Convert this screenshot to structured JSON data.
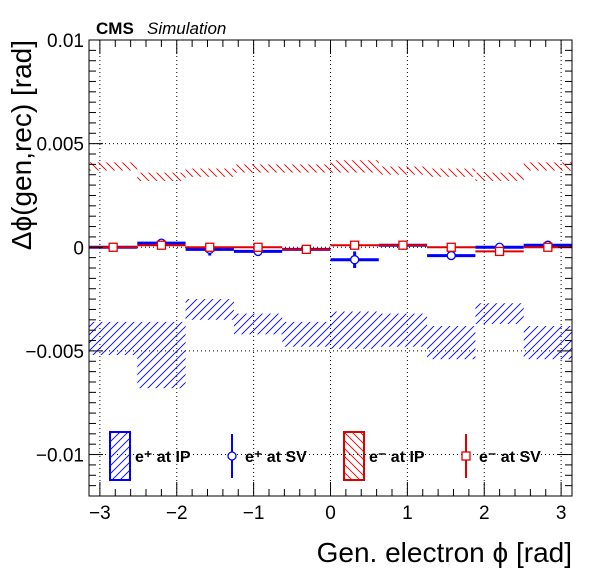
{
  "header": {
    "experiment": "CMS",
    "label": "Simulation"
  },
  "chart_data": {
    "type": "scatter",
    "xlabel": "Gen. electron ϕ [rad]",
    "ylabel": "Δϕ(gen,rec) [rad]",
    "xlim": [
      -3.1416,
      3.1416
    ],
    "ylim": [
      -0.012,
      0.01
    ],
    "grid": true,
    "x_ticks": [
      -3,
      -2,
      -1,
      0,
      1,
      2,
      3
    ],
    "y_ticks": [
      -0.01,
      -0.005,
      0,
      0.005,
      0.01
    ],
    "x_tick_labels": [
      "−3",
      "−2",
      "−1",
      "0",
      "1",
      "2",
      "3"
    ],
    "y_tick_labels": [
      "−0.01",
      "−0.005",
      "0",
      "0.005",
      "0.01"
    ],
    "bin_edges": [
      -3.1416,
      -2.5133,
      -1.885,
      -1.2566,
      -0.6283,
      0,
      0.6283,
      1.2566,
      1.885,
      2.5133,
      3.1416
    ],
    "legend_position": "bottom",
    "series": [
      {
        "name": "e⁺ at IP",
        "kind": "band",
        "color": "#0000ff",
        "values": [
          -0.0044,
          -0.0052,
          -0.003,
          -0.0037,
          -0.0042,
          -0.004,
          -0.004,
          -0.0046,
          -0.0032,
          -0.0046
        ],
        "errors": [
          0.0008,
          0.0016,
          0.0005,
          0.0005,
          0.0006,
          0.0009,
          0.0008,
          0.0008,
          0.0005,
          0.0008
        ]
      },
      {
        "name": "e⁺ at SV",
        "kind": "points",
        "marker": "circle",
        "color": "#0000ff",
        "values": [
          0.0,
          0.0002,
          -0.0001,
          -0.0002,
          -0.0001,
          -0.0006,
          0.0001,
          -0.0004,
          0.0,
          0.0001
        ],
        "errors": [
          5e-05,
          0.0001,
          0.0003,
          0.0001,
          0.0001,
          0.0004,
          0.0001,
          0.0002,
          0.0001,
          0.0001
        ]
      },
      {
        "name": "e⁻ at IP",
        "kind": "band",
        "color": "#e00000",
        "values": [
          0.0039,
          0.0034,
          0.0036,
          0.0038,
          0.0038,
          0.0039,
          0.0037,
          0.0036,
          0.0034,
          0.0039
        ],
        "errors": [
          0.0002,
          0.0002,
          0.0002,
          0.0002,
          0.0002,
          0.0003,
          0.0002,
          0.0002,
          0.0002,
          0.0002
        ]
      },
      {
        "name": "e⁻ at SV",
        "kind": "points",
        "marker": "square",
        "color": "#e00000",
        "values": [
          0.0,
          0.0001,
          0.0,
          0.0,
          -0.0001,
          0.0001,
          0.0001,
          0.0,
          -0.0002,
          0.0
        ],
        "errors": [
          5e-05,
          0.0001,
          0.0001,
          0.0001,
          0.0001,
          0.0001,
          0.0001,
          0.0002,
          0.0001,
          0.0001
        ]
      }
    ]
  }
}
